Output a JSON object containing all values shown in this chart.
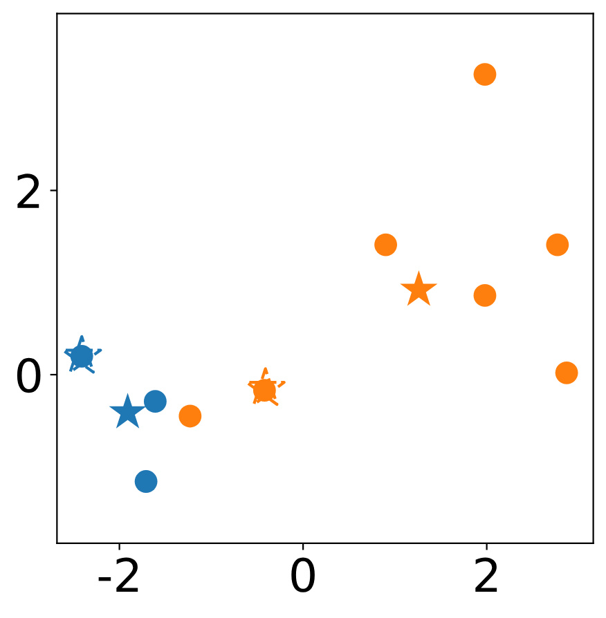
{
  "chart_data": {
    "type": "scatter",
    "xlim": [
      -2.68,
      3.16
    ],
    "ylim": [
      -1.83,
      3.92
    ],
    "xticks": [
      -2,
      0,
      2
    ],
    "yticks": [
      0,
      2
    ],
    "grid": false,
    "legend": false,
    "series": [
      {
        "color": "#1f77b4",
        "marker": "circle",
        "x": [
          -2.41,
          -1.61,
          -1.71
        ],
        "values": [
          0.2,
          -0.29,
          -1.16
        ]
      },
      {
        "color": "#ff7f0e",
        "marker": "circle",
        "x": [
          -1.23,
          -0.42,
          0.9,
          1.98,
          1.98,
          2.77,
          2.87
        ],
        "values": [
          -0.45,
          -0.17,
          1.41,
          0.86,
          3.26,
          1.41,
          0.02
        ]
      },
      {
        "color": "#1f77b4",
        "marker": "star",
        "x": [
          -1.91
        ],
        "values": [
          -0.41
        ]
      },
      {
        "color": "#ff7f0e",
        "marker": "star",
        "x": [
          1.26
        ],
        "values": [
          0.92
        ]
      },
      {
        "color": "#1f77b4",
        "marker": "star",
        "line_style": "dashed",
        "x": [
          -2.41
        ],
        "values": [
          0.2
        ]
      },
      {
        "color": "#ff7f0e",
        "marker": "star",
        "line_style": "dashed",
        "x": [
          -0.41
        ],
        "values": [
          -0.15
        ]
      }
    ]
  }
}
